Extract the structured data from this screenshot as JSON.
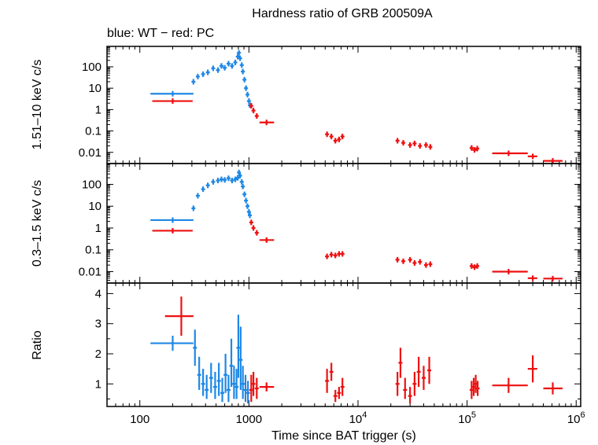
{
  "chart_data": {
    "type": "scatter",
    "title": "Hardness ratio of GRB 200509A",
    "subtitle": "blue: WT − red: PC",
    "xlabel": "Time since BAT trigger (s)",
    "xscale": "log",
    "xlim": [
      50,
      1100000
    ],
    "x_ticks": [
      {
        "value": 100,
        "label": "100"
      },
      {
        "value": 1000,
        "label": "1000"
      },
      {
        "value": 10000,
        "label": "10",
        "exp": "4"
      },
      {
        "value": 100000,
        "label": "10",
        "exp": "5"
      },
      {
        "value": 1000000,
        "label": "10",
        "exp": "6"
      }
    ],
    "colors": {
      "WT": "#1e88e5",
      "PC": "#ee1111"
    },
    "panels": [
      {
        "id": "hard",
        "ylabel": "1.51–10 keV c/s",
        "yscale": "log",
        "ylim": [
          0.003,
          900
        ],
        "y_ticks": [
          {
            "value": 100,
            "label": "100"
          },
          {
            "value": 10,
            "label": "10"
          },
          {
            "value": 1,
            "label": "1"
          },
          {
            "value": 0.1,
            "label": "0.1"
          },
          {
            "value": 0.01,
            "label": "0.01"
          }
        ],
        "series": [
          {
            "mode": "WT",
            "points": [
              {
                "x": 200,
                "y": 5.5,
                "xlo": 125,
                "xhi": 310
              },
              {
                "x": 310,
                "y": 20
              },
              {
                "x": 340,
                "y": 35
              },
              {
                "x": 380,
                "y": 45
              },
              {
                "x": 420,
                "y": 55
              },
              {
                "x": 470,
                "y": 85
              },
              {
                "x": 520,
                "y": 70
              },
              {
                "x": 560,
                "y": 110
              },
              {
                "x": 600,
                "y": 90
              },
              {
                "x": 650,
                "y": 140
              },
              {
                "x": 700,
                "y": 110
              },
              {
                "x": 750,
                "y": 160
              },
              {
                "x": 790,
                "y": 300
              },
              {
                "x": 810,
                "y": 450
              },
              {
                "x": 830,
                "y": 250
              },
              {
                "x": 860,
                "y": 120
              },
              {
                "x": 880,
                "y": 60
              },
              {
                "x": 910,
                "y": 25
              },
              {
                "x": 940,
                "y": 10
              },
              {
                "x": 970,
                "y": 5
              },
              {
                "x": 1000,
                "y": 2.5
              },
              {
                "x": 1020,
                "y": 1.6
              }
            ]
          },
          {
            "mode": "PC",
            "points": [
              {
                "x": 200,
                "y": 2.5,
                "xlo": 130,
                "xhi": 305
              },
              {
                "x": 1050,
                "y": 1.5
              },
              {
                "x": 1100,
                "y": 0.9
              },
              {
                "x": 1180,
                "y": 0.5
              },
              {
                "x": 1450,
                "y": 0.25,
                "xlo": 1250,
                "xhi": 1700
              },
              {
                "x": 5200,
                "y": 0.07
              },
              {
                "x": 5700,
                "y": 0.055
              },
              {
                "x": 6200,
                "y": 0.035
              },
              {
                "x": 6700,
                "y": 0.04
              },
              {
                "x": 7200,
                "y": 0.055
              },
              {
                "x": 23000,
                "y": 0.035
              },
              {
                "x": 26000,
                "y": 0.028
              },
              {
                "x": 30000,
                "y": 0.022
              },
              {
                "x": 33000,
                "y": 0.026
              },
              {
                "x": 37000,
                "y": 0.02
              },
              {
                "x": 42000,
                "y": 0.022
              },
              {
                "x": 46000,
                "y": 0.018
              },
              {
                "x": 110000,
                "y": 0.016
              },
              {
                "x": 117000,
                "y": 0.013
              },
              {
                "x": 124000,
                "y": 0.015
              },
              {
                "x": 240000,
                "y": 0.009,
                "xlo": 170000,
                "xhi": 360000
              },
              {
                "x": 400000,
                "y": 0.0065,
                "xlo": 360000,
                "xhi": 440000
              },
              {
                "x": 610000,
                "y": 0.004,
                "xlo": 500000,
                "xhi": 750000
              }
            ]
          }
        ]
      },
      {
        "id": "soft",
        "ylabel": "0.3–1.5 keV c/s",
        "yscale": "log",
        "ylim": [
          0.003,
          900
        ],
        "y_ticks": [
          {
            "value": 100,
            "label": "100"
          },
          {
            "value": 10,
            "label": "10"
          },
          {
            "value": 1,
            "label": "1"
          },
          {
            "value": 0.1,
            "label": "0.1"
          },
          {
            "value": 0.01,
            "label": "0.01"
          }
        ],
        "series": [
          {
            "mode": "WT",
            "points": [
              {
                "x": 200,
                "y": 2.3,
                "xlo": 125,
                "xhi": 310
              },
              {
                "x": 310,
                "y": 8
              },
              {
                "x": 340,
                "y": 30
              },
              {
                "x": 380,
                "y": 60
              },
              {
                "x": 420,
                "y": 90
              },
              {
                "x": 470,
                "y": 130
              },
              {
                "x": 520,
                "y": 150
              },
              {
                "x": 560,
                "y": 170
              },
              {
                "x": 600,
                "y": 160
              },
              {
                "x": 650,
                "y": 190
              },
              {
                "x": 700,
                "y": 150
              },
              {
                "x": 750,
                "y": 170
              },
              {
                "x": 790,
                "y": 200
              },
              {
                "x": 810,
                "y": 350
              },
              {
                "x": 830,
                "y": 250
              },
              {
                "x": 860,
                "y": 130
              },
              {
                "x": 880,
                "y": 80
              },
              {
                "x": 910,
                "y": 35
              },
              {
                "x": 940,
                "y": 18
              },
              {
                "x": 970,
                "y": 10
              },
              {
                "x": 1000,
                "y": 5.5
              },
              {
                "x": 1020,
                "y": 3.8
              }
            ]
          },
          {
            "mode": "PC",
            "points": [
              {
                "x": 200,
                "y": 0.75,
                "xlo": 130,
                "xhi": 305
              },
              {
                "x": 1050,
                "y": 1.8
              },
              {
                "x": 1100,
                "y": 1.0
              },
              {
                "x": 1180,
                "y": 0.6
              },
              {
                "x": 1450,
                "y": 0.28,
                "xlo": 1250,
                "xhi": 1700
              },
              {
                "x": 5200,
                "y": 0.05
              },
              {
                "x": 5700,
                "y": 0.06
              },
              {
                "x": 6200,
                "y": 0.055
              },
              {
                "x": 6700,
                "y": 0.065
              },
              {
                "x": 7200,
                "y": 0.065
              },
              {
                "x": 23000,
                "y": 0.035
              },
              {
                "x": 26000,
                "y": 0.03
              },
              {
                "x": 30000,
                "y": 0.035
              },
              {
                "x": 33000,
                "y": 0.025
              },
              {
                "x": 37000,
                "y": 0.028
              },
              {
                "x": 42000,
                "y": 0.02
              },
              {
                "x": 46000,
                "y": 0.022
              },
              {
                "x": 110000,
                "y": 0.018
              },
              {
                "x": 117000,
                "y": 0.016
              },
              {
                "x": 124000,
                "y": 0.018
              },
              {
                "x": 240000,
                "y": 0.01,
                "xlo": 170000,
                "xhi": 360000
              },
              {
                "x": 400000,
                "y": 0.005,
                "xlo": 360000,
                "xhi": 440000
              },
              {
                "x": 610000,
                "y": 0.0048,
                "xlo": 500000,
                "xhi": 750000
              }
            ]
          }
        ]
      },
      {
        "id": "ratio",
        "ylabel": "Ratio",
        "yscale": "linear",
        "ylim": [
          0.25,
          4.35
        ],
        "y_ticks": [
          {
            "value": 1,
            "label": "1"
          },
          {
            "value": 2,
            "label": "2"
          },
          {
            "value": 3,
            "label": "3"
          },
          {
            "value": 4,
            "label": "4"
          }
        ],
        "series": [
          {
            "mode": "WT",
            "points": [
              {
                "x": 200,
                "y": 2.35,
                "xlo": 125,
                "xhi": 310,
                "ylo": 2.1,
                "yhi": 2.6
              },
              {
                "x": 320,
                "y": 2.2,
                "ylo": 1.6,
                "yhi": 2.8
              },
              {
                "x": 350,
                "y": 1.3,
                "ylo": 0.8,
                "yhi": 1.9
              },
              {
                "x": 380,
                "y": 1.0,
                "ylo": 0.6,
                "yhi": 1.5
              },
              {
                "x": 410,
                "y": 0.8,
                "ylo": 0.5,
                "yhi": 1.3
              },
              {
                "x": 450,
                "y": 1.2,
                "ylo": 0.7,
                "yhi": 1.7
              },
              {
                "x": 490,
                "y": 0.9,
                "ylo": 0.5,
                "yhi": 1.4
              },
              {
                "x": 530,
                "y": 1.1,
                "ylo": 0.6,
                "yhi": 1.7
              },
              {
                "x": 570,
                "y": 0.7,
                "ylo": 0.4,
                "yhi": 1.2
              },
              {
                "x": 610,
                "y": 1.3,
                "ylo": 0.7,
                "yhi": 2.0
              },
              {
                "x": 650,
                "y": 0.8,
                "ylo": 0.4,
                "yhi": 1.3
              },
              {
                "x": 690,
                "y": 1.6,
                "ylo": 0.9,
                "yhi": 2.5
              },
              {
                "x": 730,
                "y": 1.0,
                "ylo": 0.5,
                "yhi": 1.6
              },
              {
                "x": 770,
                "y": 0.9,
                "ylo": 0.5,
                "yhi": 1.5
              },
              {
                "x": 800,
                "y": 2.2,
                "ylo": 1.2,
                "yhi": 3.3
              },
              {
                "x": 840,
                "y": 1.8,
                "ylo": 0.8,
                "yhi": 2.9
              },
              {
                "x": 880,
                "y": 1.0,
                "ylo": 0.5,
                "yhi": 1.6
              },
              {
                "x": 930,
                "y": 0.8,
                "ylo": 0.4,
                "yhi": 1.3
              },
              {
                "x": 980,
                "y": 0.7,
                "ylo": 0.35,
                "yhi": 1.1
              }
            ]
          },
          {
            "mode": "PC",
            "points": [
              {
                "x": 240,
                "y": 3.25,
                "xlo": 170,
                "xhi": 310,
                "ylo": 2.6,
                "yhi": 3.9
              },
              {
                "x": 1050,
                "y": 0.8,
                "ylo": 0.4,
                "yhi": 1.3
              },
              {
                "x": 1100,
                "y": 1.0,
                "ylo": 0.6,
                "yhi": 1.4
              },
              {
                "x": 1180,
                "y": 0.85,
                "ylo": 0.5,
                "yhi": 1.2
              },
              {
                "x": 1450,
                "y": 0.9,
                "xlo": 1250,
                "xhi": 1700,
                "ylo": 0.75,
                "yhi": 1.05
              },
              {
                "x": 5200,
                "y": 1.1,
                "ylo": 0.7,
                "yhi": 1.5
              },
              {
                "x": 5700,
                "y": 1.4,
                "ylo": 1.1,
                "yhi": 1.7
              },
              {
                "x": 6200,
                "y": 0.6,
                "ylo": 0.4,
                "yhi": 0.8
              },
              {
                "x": 6700,
                "y": 0.7,
                "ylo": 0.5,
                "yhi": 0.9
              },
              {
                "x": 7200,
                "y": 0.9,
                "ylo": 0.6,
                "yhi": 1.2
              },
              {
                "x": 23000,
                "y": 1.0,
                "ylo": 0.6,
                "yhi": 1.4
              },
              {
                "x": 24500,
                "y": 1.7,
                "ylo": 1.2,
                "yhi": 2.2
              },
              {
                "x": 27000,
                "y": 0.8,
                "ylo": 0.5,
                "yhi": 1.2
              },
              {
                "x": 30000,
                "y": 0.6,
                "ylo": 0.35,
                "yhi": 0.9
              },
              {
                "x": 33000,
                "y": 1.0,
                "ylo": 0.6,
                "yhi": 1.4
              },
              {
                "x": 36000,
                "y": 1.4,
                "ylo": 0.9,
                "yhi": 1.9
              },
              {
                "x": 40000,
                "y": 1.2,
                "ylo": 0.8,
                "yhi": 1.6
              },
              {
                "x": 45000,
                "y": 1.45,
                "ylo": 1.0,
                "yhi": 1.9
              },
              {
                "x": 110000,
                "y": 0.8,
                "ylo": 0.5,
                "yhi": 1.1
              },
              {
                "x": 115000,
                "y": 0.9,
                "ylo": 0.6,
                "yhi": 1.2
              },
              {
                "x": 120000,
                "y": 1.0,
                "ylo": 0.7,
                "yhi": 1.3
              },
              {
                "x": 125000,
                "y": 0.85,
                "ylo": 0.6,
                "yhi": 1.1
              },
              {
                "x": 240000,
                "y": 0.95,
                "xlo": 170000,
                "xhi": 360000,
                "ylo": 0.7,
                "yhi": 1.2
              },
              {
                "x": 400000,
                "y": 1.5,
                "xlo": 360000,
                "xhi": 440000,
                "ylo": 1.05,
                "yhi": 1.95
              },
              {
                "x": 610000,
                "y": 0.85,
                "xlo": 500000,
                "xhi": 750000,
                "ylo": 0.65,
                "yhi": 1.05
              }
            ]
          }
        ]
      }
    ]
  }
}
